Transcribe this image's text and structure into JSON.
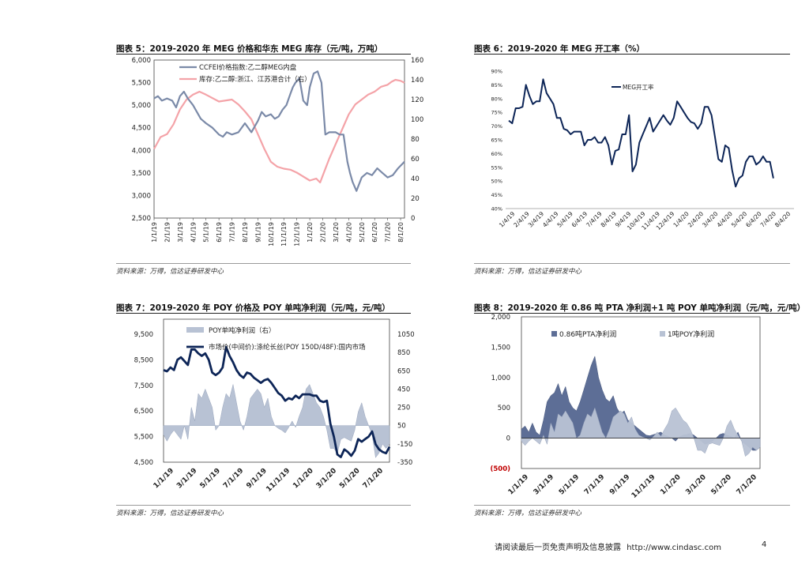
{
  "footer": {
    "disclaimer": "请阅读最后一页免责声明及信息披露",
    "url": "http://www.cindasc.com",
    "page": "4"
  },
  "colors": {
    "steel": "#7b8aa8",
    "pink": "#f4a3a8",
    "navy": "#0d2557",
    "dark": "#5d6e96",
    "light": "#b8c2d4",
    "red": "#c00000"
  },
  "chart_data": [
    {
      "id": "fig5",
      "type": "line",
      "title": "图表 5：2019-2020 年 MEG 价格和华东 MEG 库存（元/吨，万吨）",
      "source": "资料来源：万得，信达证券研发中心",
      "y_left": {
        "min": 2500,
        "max": 6000,
        "ticks": [
          "2,500",
          "3,000",
          "3,500",
          "4,000",
          "4,500",
          "5,000",
          "5,500",
          "6,000"
        ]
      },
      "y_right": {
        "min": 0,
        "max": 160,
        "ticks": [
          "0",
          "20",
          "40",
          "60",
          "80",
          "100",
          "120",
          "140",
          "160"
        ]
      },
      "x_range": [
        0,
        19.3
      ],
      "x_ticks": [
        "1/1/19",
        "2/1/19",
        "3/1/19",
        "4/1/19",
        "5/1/19",
        "6/1/19",
        "7/1/19",
        "8/1/19",
        "9/1/19",
        "10/1/19",
        "11/1/19",
        "12/1/19",
        "1/1/20",
        "2/1/20",
        "3/1/20",
        "4/1/20",
        "5/1/20",
        "6/1/20",
        "7/1/20",
        "8/1/20"
      ],
      "series": [
        {
          "name": "CCFEI价格指数:乙二醇MEG内盘",
          "axis": "left",
          "color": "#7b8aa8",
          "x": [
            0,
            0.3,
            0.6,
            1,
            1.4,
            1.7,
            2,
            2.3,
            2.6,
            3,
            3.3,
            3.6,
            4,
            4.5,
            5,
            5.3,
            5.6,
            6,
            6.5,
            7,
            7.5,
            8,
            8.3,
            8.6,
            9,
            9.3,
            9.6,
            9.9,
            10.2,
            10.5,
            10.7,
            10.9,
            11.2,
            11.5,
            11.8,
            12,
            12.3,
            12.6,
            12.9,
            13.2,
            13.5,
            14,
            14.3,
            14.6,
            14.9,
            15.1,
            15.3,
            15.6,
            16,
            16.4,
            16.8,
            17.2,
            17.6,
            18,
            18.4,
            18.8,
            19.3
          ],
          "y": [
            5150,
            5200,
            5100,
            5150,
            5100,
            4950,
            5200,
            5300,
            5150,
            5000,
            4850,
            4700,
            4600,
            4500,
            4350,
            4300,
            4400,
            4350,
            4400,
            4600,
            4400,
            4650,
            4850,
            4750,
            4800,
            4700,
            4750,
            4900,
            5000,
            5250,
            5400,
            5500,
            5600,
            5100,
            5000,
            5400,
            5700,
            5750,
            5500,
            4350,
            4400,
            4400,
            4350,
            4350,
            3750,
            3500,
            3300,
            3100,
            3400,
            3500,
            3450,
            3600,
            3500,
            3400,
            3450,
            3600,
            3750
          ]
        },
        {
          "name": "库存:乙二醇:浙江、江苏港合计（右）",
          "axis": "right",
          "color": "#f4a3a8",
          "x": [
            0,
            0.5,
            1,
            1.5,
            2,
            2.5,
            3,
            3.5,
            4,
            5,
            6,
            6.5,
            7,
            7.5,
            8,
            8.5,
            9,
            9.5,
            10,
            10.5,
            11,
            11.5,
            12,
            12.5,
            12.8,
            13,
            13.5,
            14,
            14.5,
            15,
            15.5,
            16,
            16.5,
            17,
            17.5,
            18,
            18.3,
            18.6,
            19,
            19.3
          ],
          "y": [
            70,
            82,
            85,
            95,
            110,
            120,
            125,
            128,
            125,
            118,
            120,
            115,
            108,
            100,
            85,
            70,
            57,
            52,
            50,
            49,
            46,
            42,
            38,
            40,
            36,
            43,
            60,
            75,
            90,
            105,
            115,
            120,
            125,
            128,
            133,
            135,
            138,
            140,
            139,
            137
          ]
        }
      ]
    },
    {
      "id": "fig6",
      "type": "line",
      "title": "图表 6：2019-2020 年 MEG 开工率（%）",
      "source": "资料来源：万得，信达证券研发中心",
      "y_axis": {
        "min": 40,
        "max": 90,
        "ticks": [
          "40%",
          "45%",
          "50%",
          "55%",
          "60%",
          "65%",
          "70%",
          "75%",
          "80%",
          "85%",
          "90%"
        ]
      },
      "x_range": [
        0,
        83
      ],
      "x_ticks": [
        "1/4/19",
        "2/4/19",
        "3/4/19",
        "4/4/19",
        "5/4/19",
        "6/4/19",
        "7/4/19",
        "8/4/19",
        "9/4/19",
        "10/4/19",
        "11/4/19",
        "12/4/19",
        "1/4/20",
        "2/4/20",
        "3/4/20",
        "4/4/20",
        "5/4/20",
        "6/4/20",
        "7/4/20",
        "8/4/20"
      ],
      "series": [
        {
          "name": "MEG开工率",
          "color": "#0d2557",
          "values": [
            72,
            71,
            76.5,
            76.5,
            77,
            85,
            81,
            78,
            79,
            79,
            87,
            82,
            80,
            78,
            73,
            73,
            69,
            68.5,
            67,
            68,
            68,
            68,
            63,
            65,
            65,
            66,
            64,
            64,
            66,
            63,
            56,
            61,
            61.5,
            67,
            67,
            74,
            53.5,
            56,
            64,
            67,
            70,
            73,
            68,
            70,
            72,
            74,
            72,
            70.5,
            73,
            79,
            77,
            75,
            73,
            71.5,
            71,
            69,
            71,
            77,
            77,
            74,
            66,
            58,
            57,
            63,
            62,
            54,
            48,
            51,
            52,
            57,
            59,
            59,
            56,
            57,
            59,
            57,
            57,
            51
          ]
        }
      ]
    },
    {
      "id": "fig7",
      "type": "line",
      "title": "图表 7：2019-2020 年 POY 价格及 POY 单吨净利润（元/吨，元/吨）",
      "source": "资料来源：万得，信达证券研发中心",
      "y_left": {
        "min": 4500,
        "max": 9500,
        "ticks": [
          "4,500",
          "5,500",
          "6,500",
          "7,500",
          "8,500",
          "9,500"
        ]
      },
      "y_right": {
        "min": -350,
        "max": 1050,
        "ticks": [
          "-350",
          "-150",
          "50",
          "250",
          "450",
          "650",
          "850",
          "1050"
        ]
      },
      "x_range": [
        0,
        19.5
      ],
      "x_ticks": [
        "1/1/19",
        "3/1/19",
        "5/1/19",
        "7/1/19",
        "9/1/19",
        "11/1/19",
        "1/1/20",
        "3/1/20",
        "5/1/20",
        "7/1/20"
      ],
      "series": [
        {
          "name": "POY单吨净利润（右）",
          "axis": "right",
          "kind": "area",
          "color": "#b8c2d4",
          "x": [
            0,
            0.3,
            0.6,
            0.9,
            1.2,
            1.5,
            1.8,
            2.1,
            2.4,
            2.7,
            3,
            3.3,
            3.6,
            3.9,
            4.2,
            4.5,
            4.8,
            5.1,
            5.4,
            5.7,
            6,
            6.3,
            6.6,
            6.9,
            7.2,
            7.5,
            7.8,
            8.1,
            8.4,
            8.7,
            9,
            9.3,
            9.6,
            9.9,
            10.2,
            10.5,
            10.8,
            11.1,
            11.4,
            11.7,
            12,
            12.3,
            12.6,
            12.9,
            13.2,
            13.5,
            13.8,
            14.1,
            14.4,
            14.7,
            15,
            15.3,
            15.6,
            15.9,
            16.2,
            16.5,
            16.8,
            17.1,
            17.4,
            17.7,
            18,
            18.3,
            18.6,
            18.9,
            19.2,
            19.5
          ],
          "y": [
            -50,
            -120,
            -50,
            0,
            -50,
            -100,
            50,
            -100,
            250,
            100,
            400,
            350,
            450,
            350,
            250,
            0,
            50,
            250,
            400,
            350,
            500,
            300,
            100,
            0,
            150,
            350,
            400,
            450,
            400,
            250,
            350,
            150,
            50,
            20,
            0,
            -30,
            30,
            100,
            30,
            150,
            250,
            450,
            500,
            400,
            300,
            250,
            150,
            0,
            -200,
            -200,
            -250,
            -100,
            -80,
            -100,
            -120,
            0,
            200,
            300,
            150,
            50,
            -50,
            -300,
            -250,
            -150,
            -200,
            -150
          ]
        },
        {
          "name": "市场价(中间价):涤纶长丝(POY 150D/48F):国内市场",
          "axis": "left",
          "kind": "line",
          "color": "#0d2557",
          "x": [
            0,
            0.3,
            0.6,
            0.9,
            1.2,
            1.5,
            1.8,
            2.1,
            2.4,
            2.7,
            3,
            3.3,
            3.6,
            3.9,
            4.2,
            4.5,
            4.8,
            5.1,
            5.4,
            5.7,
            6,
            6.3,
            6.6,
            6.9,
            7.2,
            7.5,
            7.8,
            8.1,
            8.4,
            8.7,
            9,
            9.3,
            9.6,
            9.9,
            10.2,
            10.5,
            10.8,
            11.1,
            11.4,
            11.7,
            12,
            12.3,
            12.6,
            12.9,
            13.2,
            13.5,
            13.8,
            14.1,
            14.4,
            14.7,
            15,
            15.3,
            15.6,
            15.9,
            16.2,
            16.5,
            16.8,
            17.1,
            17.4,
            17.7,
            18,
            18.3,
            18.6,
            18.9,
            19.2,
            19.5
          ],
          "y": [
            8100,
            8050,
            8200,
            8100,
            8500,
            8600,
            8450,
            8300,
            8900,
            8900,
            8750,
            8650,
            8750,
            8500,
            8000,
            7900,
            8000,
            8200,
            9000,
            8650,
            8400,
            8100,
            7900,
            7800,
            8000,
            7950,
            7800,
            7700,
            7600,
            7700,
            7750,
            7600,
            7400,
            7200,
            7100,
            6900,
            7000,
            6950,
            7100,
            7000,
            7150,
            7150,
            7150,
            7100,
            7100,
            6900,
            6850,
            6900,
            6000,
            5500,
            4800,
            4700,
            5000,
            4900,
            4750,
            4950,
            5400,
            5300,
            5400,
            5500,
            5700,
            5200,
            5000,
            4900,
            4850,
            5100
          ]
        }
      ]
    },
    {
      "id": "fig8",
      "type": "area",
      "title": "图表 8：2019-2020 年 0.86 吨 PTA 净利润+1 吨 POY 单吨净利润（元/吨，元/吨）",
      "source": "资料来源：万得，信达证券研发中心",
      "y_axis": {
        "min": -500,
        "max": 2000,
        "ticks": [
          "(500)",
          "0",
          "500",
          "1,000",
          "1,500",
          "2,000"
        ]
      },
      "x_range": [
        0,
        19.5
      ],
      "x_ticks": [
        "1/1/19",
        "3/1/19",
        "5/1/19",
        "7/1/19",
        "9/1/19",
        "11/1/19",
        "1/1/20",
        "3/1/20",
        "5/1/20",
        "7/1/20"
      ],
      "series": [
        {
          "name": "0.86吨PTA净利润",
          "color": "#5d6e96",
          "x": [
            0,
            0.3,
            0.6,
            0.9,
            1.2,
            1.5,
            1.8,
            2.1,
            2.4,
            2.7,
            3,
            3.3,
            3.6,
            3.9,
            4.2,
            4.5,
            4.8,
            5.1,
            5.4,
            5.7,
            6,
            6.3,
            6.6,
            6.9,
            7.2,
            7.5,
            7.8,
            8.1,
            8.4,
            8.7,
            9,
            9.3,
            9.6,
            9.9,
            10.2,
            10.5,
            10.8,
            11.1,
            11.4,
            11.7,
            12,
            12.3,
            12.6,
            12.9,
            13.2,
            13.5,
            13.8,
            14.1,
            14.4,
            14.7,
            15,
            15.3,
            15.6,
            15.9,
            16.2,
            16.5,
            16.8,
            17.1,
            17.4,
            17.7,
            18,
            18.3,
            18.6,
            18.9,
            19.2,
            19.5
          ],
          "y": [
            150,
            200,
            100,
            250,
            100,
            50,
            300,
            600,
            700,
            750,
            900,
            700,
            850,
            600,
            500,
            450,
            600,
            800,
            1000,
            1200,
            1350,
            1000,
            800,
            650,
            600,
            700,
            500,
            400,
            450,
            300,
            250,
            200,
            150,
            100,
            50,
            40,
            60,
            80,
            100,
            50,
            30,
            0,
            -50,
            20,
            50,
            60,
            80,
            50,
            0,
            -50,
            -100,
            -80,
            -50,
            0,
            60,
            80,
            50,
            30,
            0,
            100,
            -50,
            -100,
            -150,
            -200,
            -200,
            -150
          ]
        },
        {
          "name": "1吨POY净利润",
          "color": "#b8c2d4",
          "x": [
            0,
            0.3,
            0.6,
            0.9,
            1.2,
            1.5,
            1.8,
            2.1,
            2.4,
            2.7,
            3,
            3.3,
            3.6,
            3.9,
            4.2,
            4.5,
            4.8,
            5.1,
            5.4,
            5.7,
            6,
            6.3,
            6.6,
            6.9,
            7.2,
            7.5,
            7.8,
            8.1,
            8.4,
            8.7,
            9,
            9.3,
            9.6,
            9.9,
            10.2,
            10.5,
            10.8,
            11.1,
            11.4,
            11.7,
            12,
            12.3,
            12.6,
            12.9,
            13.2,
            13.5,
            13.8,
            14.1,
            14.4,
            14.7,
            15,
            15.3,
            15.6,
            15.9,
            16.2,
            16.5,
            16.8,
            17.1,
            17.4,
            17.7,
            18,
            18.3,
            18.6,
            18.9,
            19.2,
            19.5
          ],
          "y": [
            -50,
            -120,
            -50,
            0,
            -50,
            -100,
            50,
            -100,
            250,
            100,
            400,
            350,
            450,
            350,
            250,
            0,
            50,
            250,
            400,
            350,
            500,
            300,
            100,
            0,
            150,
            350,
            400,
            450,
            400,
            250,
            350,
            150,
            50,
            20,
            0,
            -30,
            30,
            100,
            30,
            150,
            250,
            450,
            500,
            400,
            300,
            250,
            150,
            0,
            -200,
            -200,
            -250,
            -100,
            -80,
            -100,
            -120,
            0,
            200,
            300,
            150,
            50,
            -50,
            -300,
            -250,
            -150,
            -200,
            -150
          ]
        }
      ]
    }
  ]
}
